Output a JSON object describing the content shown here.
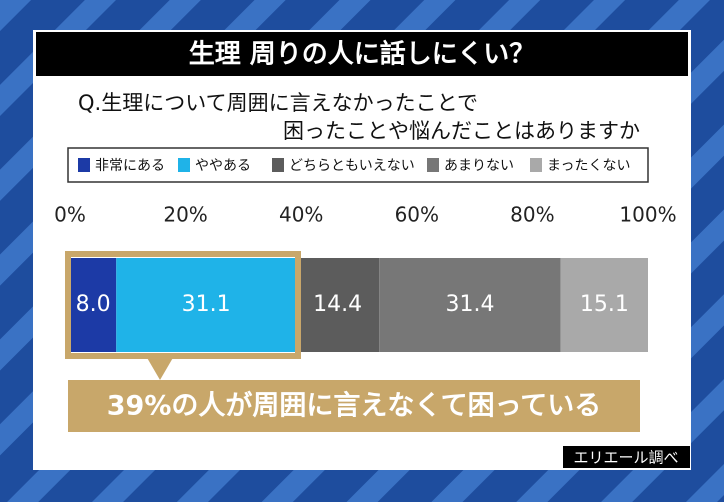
{
  "chart_data": {
    "type": "stacked-bar-horizontal",
    "title": "生理 周りの人に話しにくい？",
    "question": [
      "Q.生理について周囲に言えなかったことで",
      "困ったことや悩んだことはありますか"
    ],
    "categories": [
      null
    ],
    "series": [
      {
        "name": "非常にある",
        "color": "#1c3aa6",
        "values": [
          8.0
        ],
        "value_labels": [
          "8.0"
        ]
      },
      {
        "name": "ややある",
        "color": "#1fb3e8",
        "values": [
          31.1
        ]
      },
      {
        "name": "どちらともいえない",
        "color": "#5c5c5c",
        "values": [
          14.4
        ]
      },
      {
        "name": "あまりない",
        "color": "#777777",
        "values": [
          31.4
        ]
      },
      {
        "name": "まったくない",
        "color": "#a9a9a9",
        "values": [
          15.1
        ]
      }
    ],
    "xlim": [
      0,
      100
    ],
    "xticks": [
      {
        "value": 0,
        "label": "0%"
      },
      {
        "value": 20,
        "label": "20%"
      },
      {
        "value": 40,
        "label": "40%"
      },
      {
        "value": 60,
        "label": "60%"
      },
      {
        "value": 80,
        "label": "80%"
      },
      {
        "value": 100,
        "label": "100%"
      }
    ],
    "annotation": "39%の人が周囲に言えなくて困っている",
    "source": "エリエール調べ"
  }
}
